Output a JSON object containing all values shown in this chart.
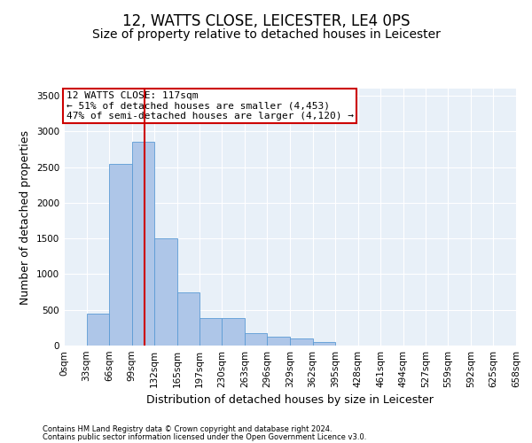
{
  "title": "12, WATTS CLOSE, LEICESTER, LE4 0PS",
  "subtitle": "Size of property relative to detached houses in Leicester",
  "xlabel": "Distribution of detached houses by size in Leicester",
  "ylabel": "Number of detached properties",
  "annotation_text": "12 WATTS CLOSE: 117sqm\n← 51% of detached houses are smaller (4,453)\n47% of semi-detached houses are larger (4,120) →",
  "footnote1": "Contains HM Land Registry data © Crown copyright and database right 2024.",
  "footnote2": "Contains public sector information licensed under the Open Government Licence v3.0.",
  "bar_edges": [
    0,
    33,
    66,
    99,
    132,
    165,
    197,
    230,
    263,
    296,
    329,
    362,
    395,
    428,
    461,
    494,
    527,
    559,
    592,
    625,
    658
  ],
  "bar_heights": [
    5,
    450,
    2550,
    2850,
    1500,
    750,
    380,
    380,
    170,
    120,
    100,
    55,
    0,
    0,
    0,
    0,
    0,
    0,
    0,
    0
  ],
  "bar_color": "#aec6e8",
  "bar_edge_color": "#5b9bd5",
  "vline_x": 117,
  "vline_color": "#cc0000",
  "annotation_box_color": "#cc0000",
  "ylim": [
    0,
    3600
  ],
  "xlim": [
    0,
    658
  ],
  "yticks": [
    0,
    500,
    1000,
    1500,
    2000,
    2500,
    3000,
    3500
  ],
  "xtick_labels": [
    "0sqm",
    "33sqm",
    "66sqm",
    "99sqm",
    "132sqm",
    "165sqm",
    "197sqm",
    "230sqm",
    "263sqm",
    "296sqm",
    "329sqm",
    "362sqm",
    "395sqm",
    "428sqm",
    "461sqm",
    "494sqm",
    "527sqm",
    "559sqm",
    "592sqm",
    "625sqm",
    "658sqm"
  ],
  "background_color": "#e8f0f8",
  "grid_color": "#ffffff",
  "title_fontsize": 12,
  "subtitle_fontsize": 10,
  "axis_label_fontsize": 9,
  "tick_fontsize": 7.5,
  "annotation_fontsize": 8,
  "footnote_fontsize": 6
}
